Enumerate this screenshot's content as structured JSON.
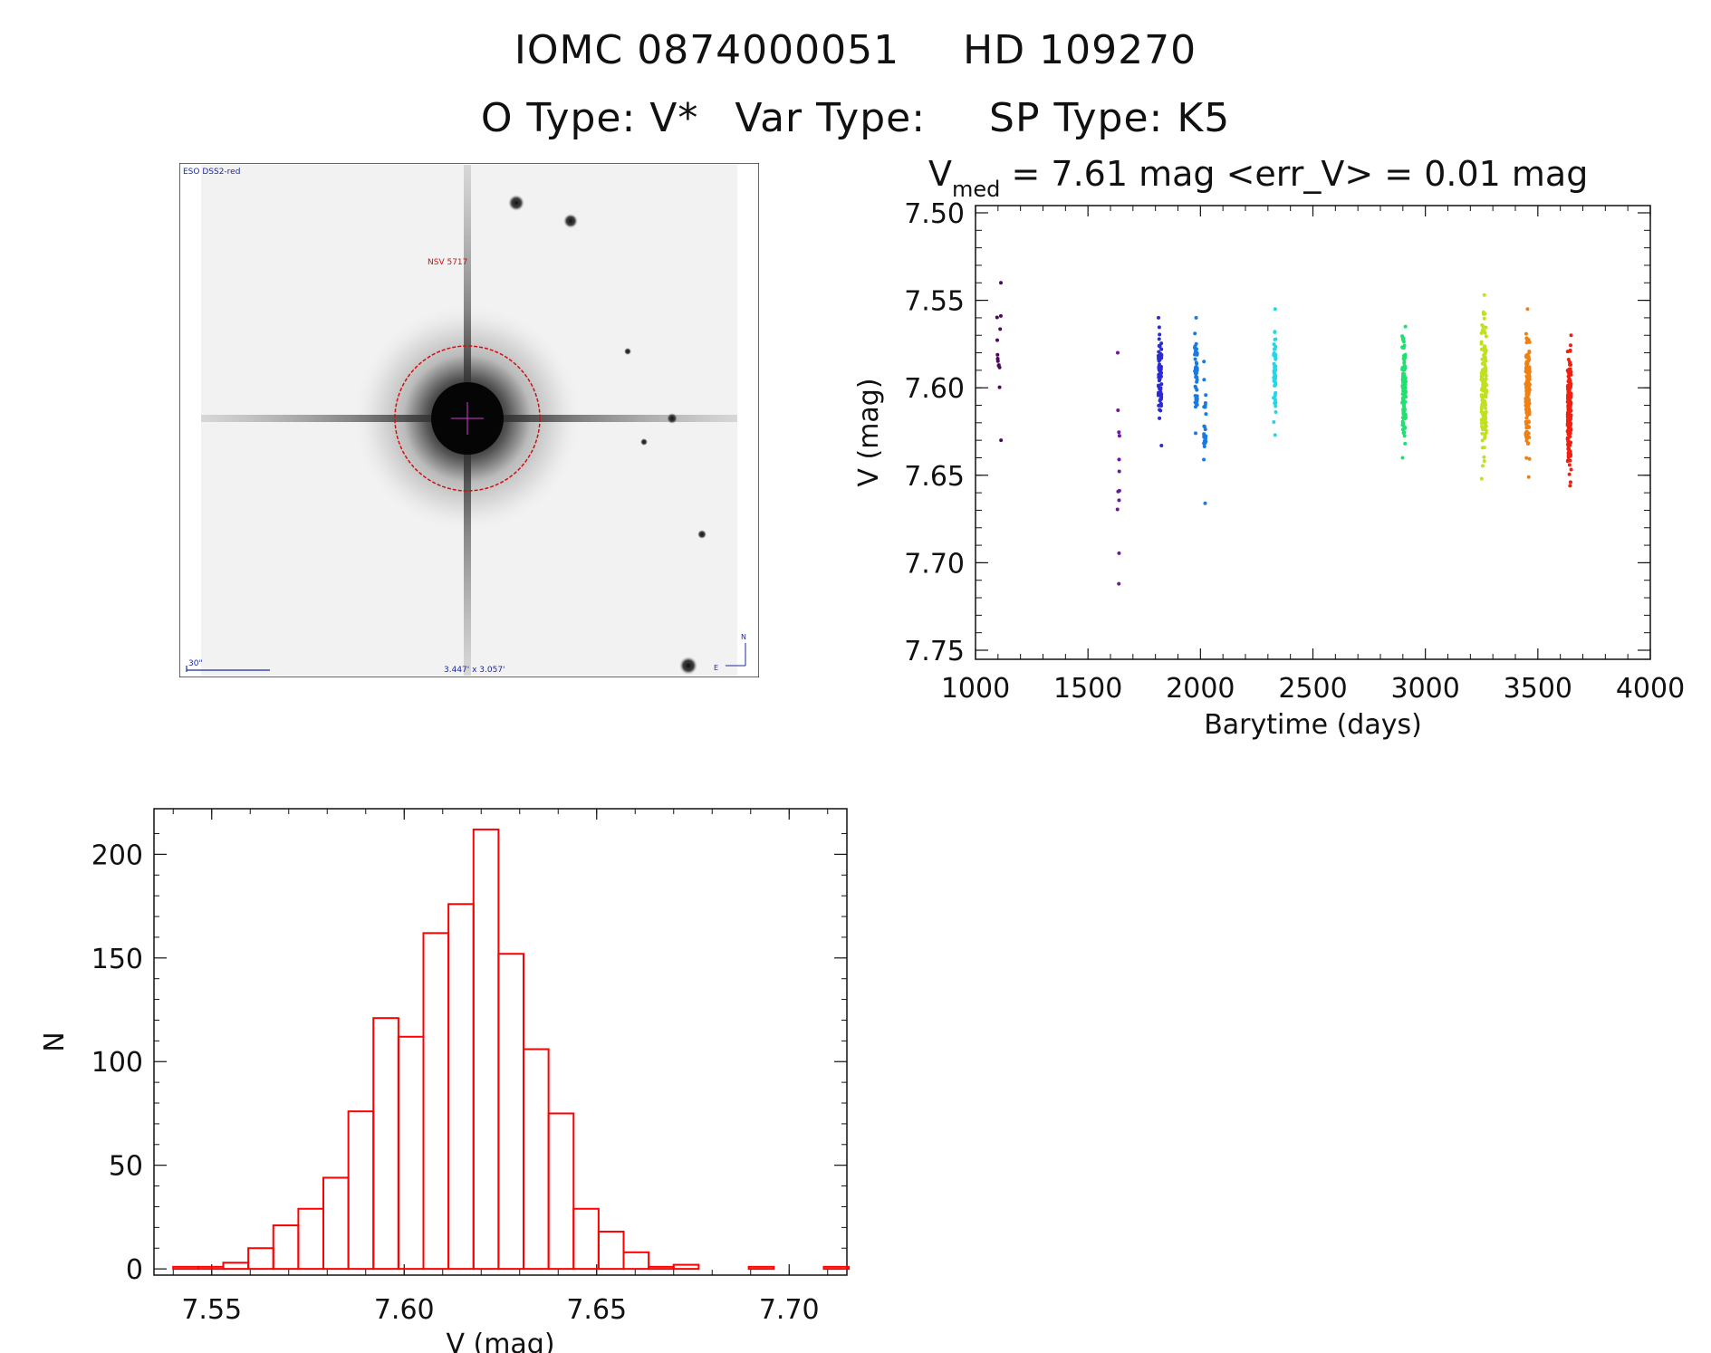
{
  "header": {
    "iomc": "IOMC 0874000051",
    "hd": "HD 109270",
    "otype_label": "O Type: V*",
    "vartype_label": "Var Type:",
    "sptype_label": "SP Type: K5"
  },
  "image_panel": {
    "survey_label": "ESO DSS2-red",
    "object_label": "NSV 5717",
    "scale_label": "30\"",
    "size_label": "3.447' x 3.057'",
    "compass_n": "N",
    "compass_e": "E"
  },
  "chart_data": [
    {
      "type": "scatter",
      "title_prefix": "V",
      "title_sub": "med",
      "title_rest": " = 7.61 mag <err_V> = 0.01 mag",
      "xlabel": "Barytime (days)",
      "ylabel": "V (mag)",
      "xlim": [
        1000,
        4000
      ],
      "ylim": [
        7.75,
        7.5
      ],
      "y_inverted": true,
      "xticks": [
        1000,
        1500,
        2000,
        2500,
        3000,
        3500,
        4000
      ],
      "yticks": [
        "7.50",
        "7.55",
        "7.60",
        "7.65",
        "7.70",
        "7.75"
      ],
      "colors": [
        "#4a0a5a",
        "#6a1a9a",
        "#2a2ad8",
        "#1a7ae0",
        "#20d8e8",
        "#20e070",
        "#c0e020",
        "#f08010",
        "#f02010"
      ],
      "groups": [
        {
          "x": 1105,
          "spread": 20,
          "ymin": 7.54,
          "ymax": 7.63,
          "n": 14,
          "color": "#4a0a5a"
        },
        {
          "x": 1635,
          "spread": 10,
          "ymin": 7.58,
          "ymax": 7.712,
          "n": 12,
          "color": "#6a1a9a"
        },
        {
          "x": 1820,
          "spread": 14,
          "ymin": 7.56,
          "ymax": 7.633,
          "n": 70,
          "color": "#2a2ad8"
        },
        {
          "x": 1980,
          "spread": 12,
          "ymin": 7.56,
          "ymax": 7.626,
          "n": 50,
          "color": "#1a7ae0"
        },
        {
          "x": 2020,
          "spread": 10,
          "ymin": 7.585,
          "ymax": 7.666,
          "n": 25,
          "color": "#1a7ae0"
        },
        {
          "x": 2330,
          "spread": 10,
          "ymin": 7.555,
          "ymax": 7.627,
          "n": 60,
          "color": "#20d8e8"
        },
        {
          "x": 2905,
          "spread": 16,
          "ymin": 7.565,
          "ymax": 7.64,
          "n": 110,
          "color": "#20e070"
        },
        {
          "x": 3260,
          "spread": 22,
          "ymin": 7.547,
          "ymax": 7.652,
          "n": 160,
          "color": "#c0e020"
        },
        {
          "x": 3455,
          "spread": 18,
          "ymin": 7.555,
          "ymax": 7.651,
          "n": 170,
          "color": "#f08010"
        },
        {
          "x": 3640,
          "spread": 16,
          "ymin": 7.57,
          "ymax": 7.656,
          "n": 200,
          "color": "#f02010"
        }
      ]
    },
    {
      "type": "bar",
      "xlabel": "V (mag)",
      "ylabel": "N",
      "xlim": [
        7.535,
        7.715
      ],
      "ylim": [
        -3,
        222
      ],
      "xticks": [
        "7.55",
        "7.60",
        "7.65",
        "7.70"
      ],
      "yticks": [
        0,
        50,
        100,
        150,
        200
      ],
      "bin_width": 0.0065,
      "bin_start": 7.54,
      "counts": [
        1,
        1,
        3,
        10,
        21,
        29,
        44,
        76,
        121,
        112,
        162,
        176,
        212,
        152,
        106,
        75,
        29,
        18,
        8,
        1,
        2,
        0,
        0,
        1,
        0,
        0,
        1,
        0,
        0,
        0,
        0,
        0
      ],
      "color": "#ff0000"
    }
  ]
}
